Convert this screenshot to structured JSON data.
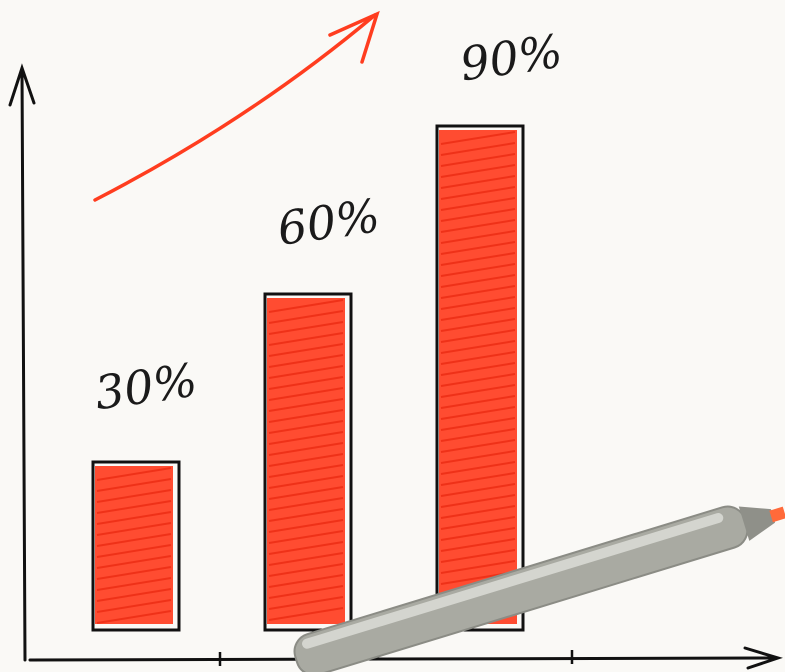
{
  "chart_data": {
    "type": "bar",
    "categories": [
      null,
      null,
      null
    ],
    "values": [
      30,
      60,
      90
    ],
    "value_labels": [
      "30%",
      "60%",
      "90%"
    ],
    "color": "#ff3d1f",
    "ylim": [
      0,
      100
    ]
  }
}
